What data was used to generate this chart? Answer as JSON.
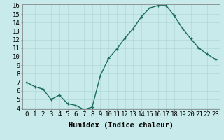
{
  "x": [
    0,
    1,
    2,
    3,
    4,
    5,
    6,
    7,
    8,
    9,
    10,
    11,
    12,
    13,
    14,
    15,
    16,
    17,
    18,
    19,
    20,
    21,
    22,
    23
  ],
  "y": [
    7.0,
    6.5,
    6.2,
    5.0,
    5.5,
    4.5,
    4.3,
    3.8,
    4.1,
    7.8,
    9.8,
    10.9,
    12.2,
    13.3,
    14.7,
    15.7,
    16.0,
    16.0,
    14.8,
    13.3,
    12.1,
    11.0,
    10.3,
    9.7
  ],
  "xlabel": "Humidex (Indice chaleur)",
  "ylim_min": 4,
  "ylim_max": 16,
  "xlim_min": -0.5,
  "xlim_max": 23.5,
  "yticks": [
    4,
    5,
    6,
    7,
    8,
    9,
    10,
    11,
    12,
    13,
    14,
    15,
    16
  ],
  "xticks": [
    0,
    1,
    2,
    3,
    4,
    5,
    6,
    7,
    8,
    9,
    10,
    11,
    12,
    13,
    14,
    15,
    16,
    17,
    18,
    19,
    20,
    21,
    22,
    23
  ],
  "line_color": "#1a6b5a",
  "marker": "+",
  "bg_color": "#c8eaea",
  "grid_color": "#b0d8d8",
  "xlabel_fontsize": 7.5,
  "tick_fontsize": 6.5,
  "linewidth": 1.0,
  "markersize": 3.5
}
